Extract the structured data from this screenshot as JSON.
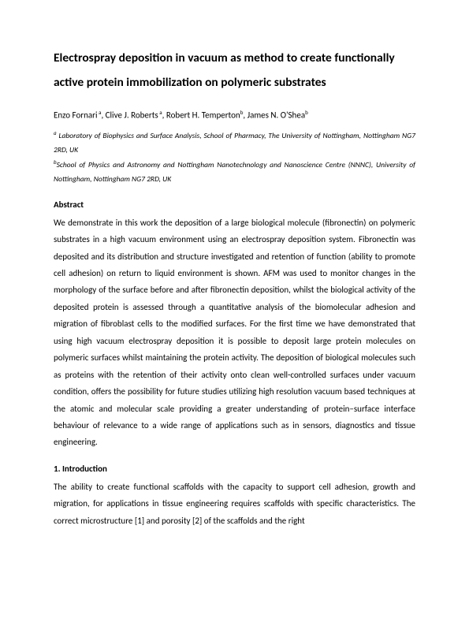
{
  "title_line1": "Electrospray deposition in vacuum as method to create functionally",
  "title_line2": "active protein immobilization on polymeric substrates",
  "authors_html": "Enzo Fornari<sup> a</sup>, Clive J. Roberts<sup> a</sup>, Robert H. Temperton<sup>b</sup>, James N. O'Shea<sup>b</sup>",
  "affiliation_a_html": "<sup>a</sup> Laboratory of Biophysics and Surface Analysis, School of Pharmacy, The University of Nottingham, Nottingham NG7 2RD, UK",
  "affiliation_b_html": "<sup>b</sup>School of Physics and Astronomy and Nottingham Nanotechnology and Nanoscience Centre (NNNC), University of Nottingham, Nottingham NG7 2RD, UK",
  "abstract_heading": "Abstract",
  "abstract_text": "We demonstrate in this work the deposition of a large biological molecule (fibronectin) on polymeric substrates in a high vacuum environment using an electrospray deposition system. Fibronectin was deposited and its distribution and structure investigated and retention of function (ability to promote cell adhesion) on return to liquid environment is shown. AFM was used to monitor changes in the morphology of the surface before and after fibronectin deposition, whilst the biological activity of the deposited protein is assessed through a quantitative analysis of the biomolecular adhesion and migration of fibroblast cells to the modified surfaces. For the first time we have demonstrated that using high vacuum electrospray deposition it is possible to deposit large protein molecules on polymeric surfaces whilst maintaining the protein activity. The deposition of biological molecules such as proteins with the retention of their activity onto clean well-controlled surfaces under vacuum condition, offers the possibility for future studies utilizing high resolution vacuum based techniques at the atomic and molecular scale providing a greater understanding of protein–surface interface behaviour of relevance to a wide range of applications such as in sensors, diagnostics and tissue engineering.",
  "intro_heading": "1. Introduction",
  "intro_text": "The ability to create functional scaffolds with the capacity to support cell adhesion, growth and migration, for applications in tissue engineering requires scaffolds with specific characteristics. The correct microstructure [1] and porosity [2] of the scaffolds and the right"
}
